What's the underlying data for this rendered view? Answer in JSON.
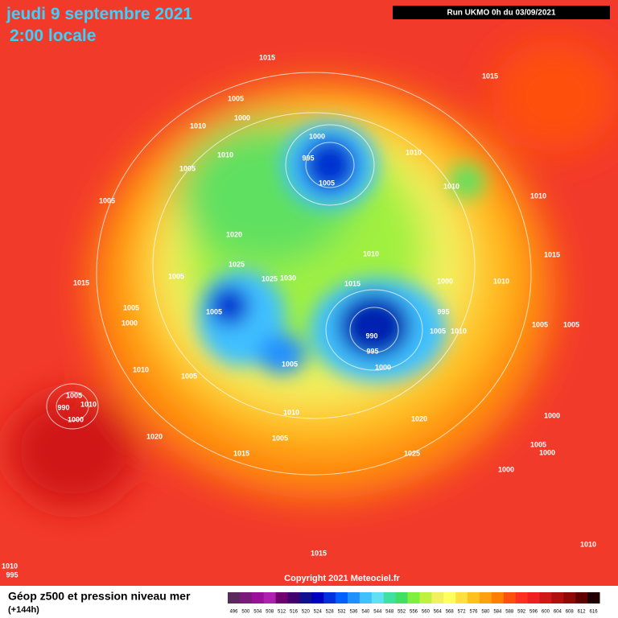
{
  "header": {
    "date": "jeudi 9 septembre 2021",
    "time": "2:00 locale",
    "run": "Run UKMO 0h du 03/09/2021"
  },
  "isobar_labels": [
    1015,
    1015,
    1005,
    1000,
    1010,
    1000,
    995,
    1010,
    1005,
    1010,
    1005,
    1010,
    1005,
    1010,
    1020,
    1010,
    1015,
    1025,
    1005,
    1025,
    1030,
    1015,
    1000,
    1010,
    1015,
    1005,
    1005,
    995,
    1000,
    990,
    1005,
    1010,
    1005,
    1005,
    995,
    1005,
    1000,
    1010,
    1005,
    1005,
    1010,
    990,
    1000,
    1010,
    1020,
    1000,
    1020,
    1005,
    1005,
    1000,
    1015,
    1025,
    1000,
    1015,
    1010,
    1010,
    995
  ],
  "copyright": "Copyright 2021 Meteociel.fr",
  "footer": {
    "title": "Géop z500 et pression niveau mer",
    "lead": "(+144h)"
  },
  "scale": {
    "ticks": [
      496,
      500,
      504,
      508,
      512,
      516,
      520,
      524,
      528,
      532,
      536,
      540,
      544,
      548,
      552,
      556,
      560,
      564,
      568,
      572,
      576,
      580,
      584,
      588,
      592,
      596,
      600,
      604,
      608,
      612,
      616
    ],
    "colors": [
      "#5a2a5a",
      "#7a1a7a",
      "#9a109a",
      "#b020b0",
      "#700070",
      "#400070",
      "#101090",
      "#0000c0",
      "#0030e0",
      "#0060ff",
      "#2090ff",
      "#40c0ff",
      "#60e0f0",
      "#40e0a0",
      "#40e060",
      "#80f040",
      "#c0f040",
      "#f0f060",
      "#ffff60",
      "#ffe040",
      "#ffc020",
      "#ffa010",
      "#ff8000",
      "#ff5010",
      "#ff3020",
      "#f02020",
      "#d01818",
      "#b01010",
      "#900808",
      "#600000",
      "#200000"
    ]
  }
}
